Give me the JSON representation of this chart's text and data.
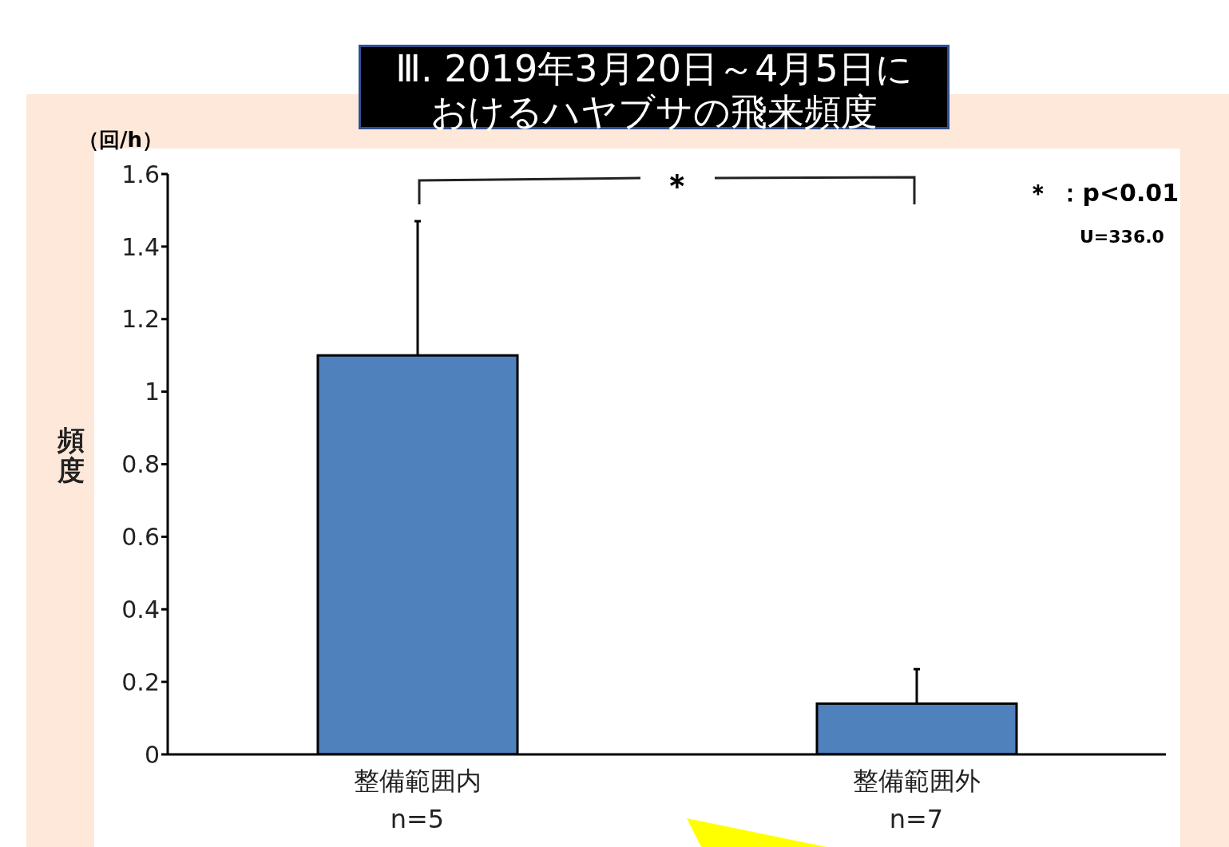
{
  "chart_data": {
    "type": "bar",
    "title": "Ⅲ. 2019年3月20日～4月5日におけるハヤブサの飛来頻度",
    "ylabel": "頻度",
    "categories": [
      "整備範囲内\nn=5",
      "整備範囲外\nn=7"
    ],
    "values": [
      1.1,
      0.14
    ],
    "errors": [
      0.37,
      0.095
    ],
    "color": "#4f81bd",
    "ylim": [
      0,
      1.6
    ],
    "yticks": [
      0,
      0.2,
      0.4,
      0.6,
      0.8,
      1,
      1.2,
      1.4,
      1.6
    ],
    "annotations": [
      "＊",
      "＊ ：p<0.01",
      "U=336.0",
      "（回/h）"
    ]
  }
}
